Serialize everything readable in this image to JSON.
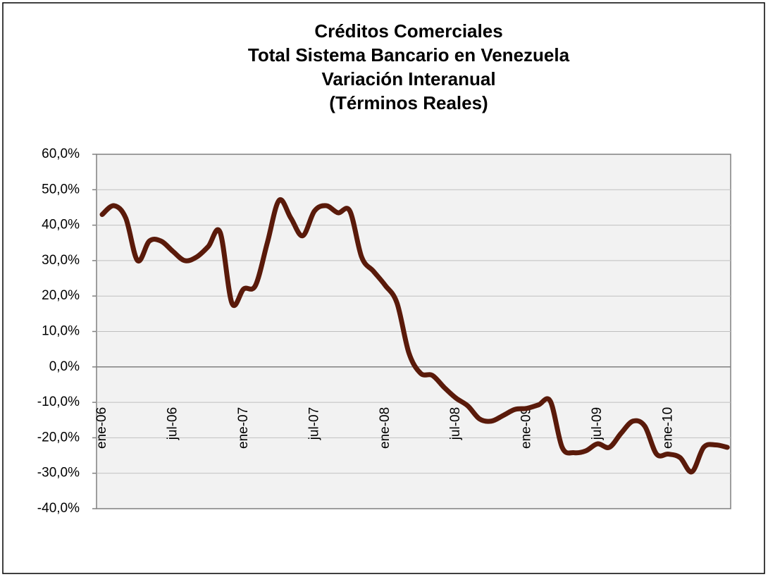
{
  "chart_data": {
    "type": "line",
    "title": [
      "Créditos Comerciales",
      "Total Sistema Bancario en Venezuela",
      "Variación Interanual",
      "(Términos Reales)"
    ],
    "categories": [
      "ene-06",
      null,
      null,
      null,
      null,
      null,
      "jul-06",
      null,
      null,
      null,
      null,
      null,
      "ene-07",
      null,
      null,
      null,
      null,
      null,
      "jul-07",
      null,
      null,
      null,
      null,
      null,
      "ene-08",
      null,
      null,
      null,
      null,
      null,
      "jul-08",
      null,
      null,
      null,
      null,
      null,
      "ene-09",
      null,
      null,
      null,
      null,
      null,
      "jul-09",
      null,
      null,
      null,
      null,
      null,
      "ene-10",
      null,
      null,
      null,
      null,
      null
    ],
    "series": [
      {
        "color": "#5a1a0a",
        "values": [
          43,
          45.5,
          42,
          30,
          35.5,
          35.5,
          32.6,
          30,
          31,
          34,
          38,
          18,
          22,
          23,
          35,
          47,
          42,
          37,
          44,
          45.5,
          43.5,
          44,
          31,
          27,
          23,
          18,
          4,
          -1.8,
          -2.4,
          -5.8,
          -8.8,
          -11,
          -14.7,
          -15.3,
          -13.7,
          -12,
          -11.7,
          -10.7,
          -9.7,
          -22.7,
          -24.2,
          -23.7,
          -21.7,
          -22.7,
          -18.7,
          -15.3,
          -16.7,
          -24.6,
          -24.6,
          -25.6,
          -29.6,
          -22.7,
          -22,
          -22.7
        ]
      }
    ],
    "ylim": [
      -40,
      60
    ],
    "yticks": [
      {
        "value": -40,
        "label": "-40,0%"
      },
      {
        "value": -30,
        "label": "-30,0%"
      },
      {
        "value": -20,
        "label": "-20,0%"
      },
      {
        "value": -10,
        "label": "-10,0%"
      },
      {
        "value": 0,
        "label": "0,0%"
      },
      {
        "value": 10,
        "label": "10,0%"
      },
      {
        "value": 20,
        "label": "20,0%"
      },
      {
        "value": 30,
        "label": "30,0%"
      },
      {
        "value": 40,
        "label": "40,0%"
      },
      {
        "value": 50,
        "label": "50,0%"
      },
      {
        "value": 60,
        "label": "60,0%"
      }
    ],
    "grid": true
  }
}
